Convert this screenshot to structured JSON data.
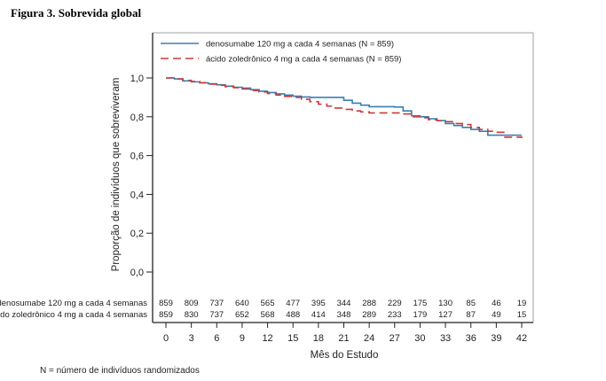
{
  "figure": {
    "title": "Figura 3. Sobrevida global",
    "footnote": "N = número de indivíduos randomizados"
  },
  "colors": {
    "denosumab": "#3a7fb0",
    "zoledronic": "#cc3a3a",
    "axis": "#222222",
    "frame": "#a0a0a0"
  },
  "chart_data": {
    "type": "line",
    "title": "Figura 3. Sobrevida global",
    "xlabel": "Mês do Estudo",
    "ylabel": "Proporção de indivíduos que sobreviveram",
    "xlim": [
      0,
      42
    ],
    "ylim": [
      0,
      1.0
    ],
    "x_ticks": [
      0,
      3,
      6,
      9,
      12,
      15,
      18,
      21,
      24,
      27,
      30,
      33,
      36,
      39,
      42
    ],
    "y_ticks": [
      0.0,
      0.2,
      0.4,
      0.6,
      0.8,
      1.0
    ],
    "y_tick_labels": [
      "0,0",
      "0,2",
      "0,4",
      "0,6",
      "0,8",
      "1,0"
    ],
    "grid": false,
    "legend_position": "top-left",
    "series": [
      {
        "name": "denosumabe 120 mg a cada 4 semanas (N = 859)",
        "short_name": "denosumabe 120 mg a cada 4 semanas",
        "style": "solid",
        "step": true,
        "points": [
          [
            0,
            1.0
          ],
          [
            1,
            0.995
          ],
          [
            2,
            0.985
          ],
          [
            3,
            0.98
          ],
          [
            4,
            0.975
          ],
          [
            5,
            0.97
          ],
          [
            6,
            0.965
          ],
          [
            7,
            0.958
          ],
          [
            8,
            0.952
          ],
          [
            9,
            0.948
          ],
          [
            10,
            0.94
          ],
          [
            11,
            0.932
          ],
          [
            12,
            0.925
          ],
          [
            13,
            0.918
          ],
          [
            14,
            0.912
          ],
          [
            15,
            0.906
          ],
          [
            16,
            0.902
          ],
          [
            17,
            0.9
          ],
          [
            20,
            0.9
          ],
          [
            21,
            0.885
          ],
          [
            22,
            0.87
          ],
          [
            23,
            0.86
          ],
          [
            24,
            0.852
          ],
          [
            27,
            0.85
          ],
          [
            28,
            0.83
          ],
          [
            29,
            0.805
          ],
          [
            30,
            0.8
          ],
          [
            31,
            0.79
          ],
          [
            32,
            0.78
          ],
          [
            33,
            0.765
          ],
          [
            34,
            0.755
          ],
          [
            35,
            0.745
          ],
          [
            36,
            0.735
          ],
          [
            37,
            0.725
          ],
          [
            38,
            0.705
          ],
          [
            42,
            0.705
          ]
        ],
        "at_risk": [
          859,
          809,
          737,
          640,
          565,
          477,
          395,
          344,
          288,
          229,
          175,
          130,
          85,
          46,
          19
        ]
      },
      {
        "name": "ácido zoledrônico 4 mg a cada 4 semanas (N = 859)",
        "short_name": "ácido zoledrônico 4 mg a cada 4 semanas",
        "style": "dashed",
        "step": true,
        "points": [
          [
            0,
            1.0
          ],
          [
            1,
            0.995
          ],
          [
            2,
            0.988
          ],
          [
            3,
            0.982
          ],
          [
            4,
            0.975
          ],
          [
            5,
            0.968
          ],
          [
            6,
            0.962
          ],
          [
            7,
            0.955
          ],
          [
            8,
            0.95
          ],
          [
            9,
            0.943
          ],
          [
            10,
            0.935
          ],
          [
            11,
            0.928
          ],
          [
            12,
            0.92
          ],
          [
            13,
            0.912
          ],
          [
            14,
            0.905
          ],
          [
            15,
            0.9
          ],
          [
            16,
            0.89
          ],
          [
            17,
            0.878
          ],
          [
            18,
            0.865
          ],
          [
            19,
            0.855
          ],
          [
            20,
            0.845
          ],
          [
            21,
            0.838
          ],
          [
            22,
            0.83
          ],
          [
            23,
            0.825
          ],
          [
            24,
            0.82
          ],
          [
            28,
            0.815
          ],
          [
            29,
            0.8
          ],
          [
            30,
            0.795
          ],
          [
            31,
            0.785
          ],
          [
            32,
            0.78
          ],
          [
            33,
            0.775
          ],
          [
            34,
            0.765
          ],
          [
            35,
            0.76
          ],
          [
            36,
            0.745
          ],
          [
            37,
            0.735
          ],
          [
            38,
            0.725
          ],
          [
            39,
            0.72
          ],
          [
            40,
            0.695
          ],
          [
            42,
            0.69
          ]
        ],
        "at_risk": [
          859,
          830,
          737,
          652,
          568,
          488,
          414,
          348,
          289,
          233,
          179,
          127,
          87,
          49,
          15
        ]
      }
    ]
  }
}
